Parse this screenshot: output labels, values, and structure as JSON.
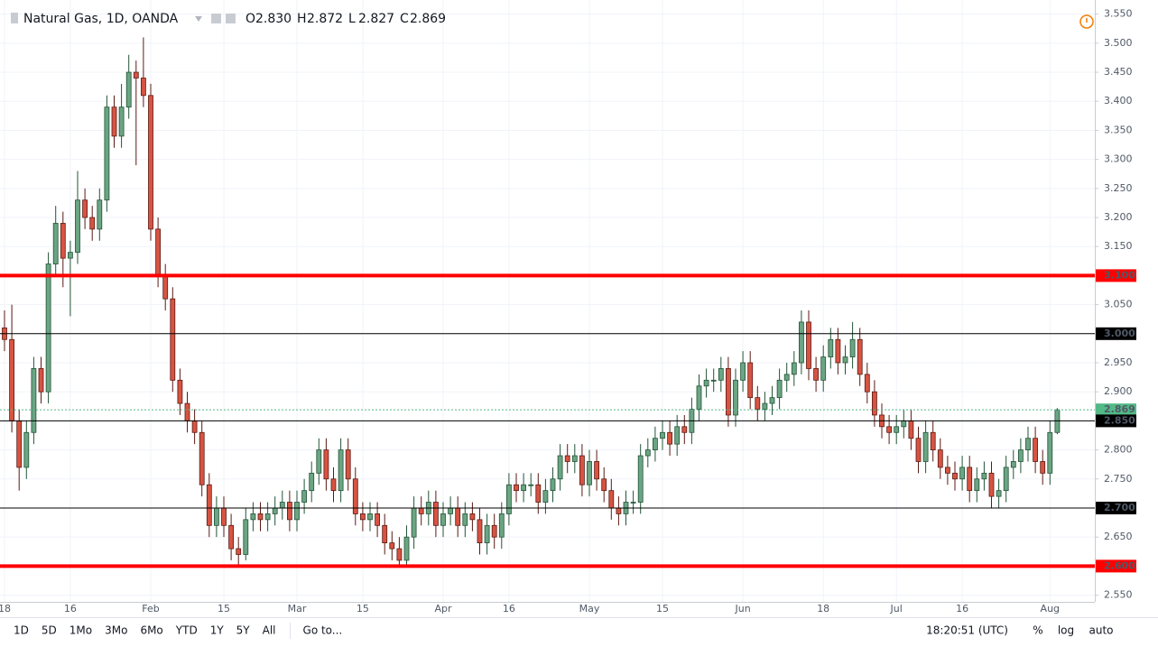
{
  "chart_data": {
    "type": "candlestick",
    "symbol": "Natural Gas, 1D, OANDA",
    "header": [
      {
        "label": "O",
        "value": "2.830"
      },
      {
        "label": "H",
        "value": "2.872"
      },
      {
        "label": "L",
        "value": "2.827"
      },
      {
        "label": "C",
        "value": "2.869"
      }
    ],
    "categories": [
      "18",
      null,
      null,
      null,
      null,
      null,
      null,
      null,
      null,
      "16",
      null,
      null,
      null,
      null,
      null,
      null,
      null,
      null,
      null,
      null,
      "Feb",
      null,
      null,
      null,
      null,
      null,
      null,
      null,
      null,
      null,
      "15",
      null,
      null,
      null,
      null,
      null,
      null,
      null,
      null,
      null,
      "Mar",
      null,
      null,
      null,
      null,
      null,
      null,
      null,
      null,
      "15",
      null,
      null,
      null,
      null,
      null,
      null,
      null,
      null,
      null,
      null,
      "Apr",
      null,
      null,
      null,
      null,
      null,
      null,
      null,
      null,
      "16",
      null,
      null,
      null,
      null,
      null,
      null,
      null,
      null,
      null,
      null,
      "May",
      null,
      null,
      null,
      null,
      null,
      null,
      null,
      null,
      null,
      "15",
      null,
      null,
      null,
      null,
      null,
      null,
      null,
      null,
      null,
      null,
      "Jun",
      null,
      null,
      null,
      null,
      null,
      null,
      null,
      null,
      null,
      null,
      "18",
      null,
      null,
      null,
      null,
      null,
      null,
      null,
      null,
      null,
      "Jul",
      null,
      null,
      null,
      null,
      null,
      null,
      null,
      null,
      "16",
      null,
      null,
      null,
      null,
      null,
      null,
      null,
      null,
      null,
      null,
      null,
      "Aug",
      null
    ],
    "open": [
      3.01,
      2.99,
      2.85,
      2.77,
      2.83,
      2.94,
      2.9,
      3.12,
      3.19,
      3.13,
      3.14,
      3.23,
      3.2,
      3.18,
      3.23,
      3.39,
      3.34,
      3.39,
      3.45,
      3.44,
      3.41,
      3.18,
      3.1,
      3.06,
      2.92,
      2.88,
      2.85,
      2.83,
      2.74,
      2.67,
      2.7,
      2.67,
      2.63,
      2.62,
      2.68,
      2.69,
      2.68,
      2.69,
      2.7,
      2.71,
      2.68,
      2.71,
      2.73,
      2.76,
      2.8,
      2.75,
      2.73,
      2.8,
      2.75,
      2.69,
      2.68,
      2.69,
      2.67,
      2.64,
      2.63,
      2.61,
      2.65,
      2.7,
      2.69,
      2.71,
      2.67,
      2.69,
      2.7,
      2.67,
      2.69,
      2.68,
      2.64,
      2.67,
      2.65,
      2.69,
      2.74,
      2.73,
      2.74,
      2.74,
      2.71,
      2.73,
      2.75,
      2.79,
      2.78,
      2.79,
      2.74,
      2.78,
      2.75,
      2.73,
      2.7,
      2.69,
      2.71,
      2.71,
      2.79,
      2.8,
      2.82,
      2.83,
      2.81,
      2.84,
      2.83,
      2.87,
      2.91,
      2.92,
      2.92,
      2.94,
      2.86,
      2.92,
      2.95,
      2.89,
      2.87,
      2.88,
      2.89,
      2.92,
      2.93,
      2.95,
      3.02,
      2.94,
      2.92,
      2.96,
      2.99,
      2.95,
      2.96,
      2.99,
      2.93,
      2.9,
      2.86,
      2.84,
      2.83,
      2.84,
      2.85,
      2.82,
      2.78,
      2.83,
      2.8,
      2.77,
      2.76,
      2.75,
      2.77,
      2.73,
      2.75,
      2.76,
      2.72,
      2.73,
      2.77,
      2.78,
      2.8,
      2.82,
      2.78,
      2.76,
      2.83
    ],
    "high": [
      3.04,
      3.05,
      2.87,
      2.85,
      2.96,
      2.96,
      3.14,
      3.22,
      3.21,
      3.16,
      3.28,
      3.25,
      3.22,
      3.25,
      3.41,
      3.41,
      3.43,
      3.48,
      3.47,
      3.51,
      3.43,
      3.2,
      3.12,
      3.08,
      2.94,
      2.9,
      2.87,
      2.85,
      2.76,
      2.72,
      2.72,
      2.69,
      2.65,
      2.7,
      2.71,
      2.71,
      2.71,
      2.72,
      2.73,
      2.73,
      2.73,
      2.75,
      2.78,
      2.82,
      2.82,
      2.77,
      2.82,
      2.82,
      2.77,
      2.71,
      2.71,
      2.71,
      2.69,
      2.66,
      2.65,
      2.67,
      2.72,
      2.72,
      2.73,
      2.73,
      2.71,
      2.72,
      2.72,
      2.71,
      2.71,
      2.7,
      2.69,
      2.69,
      2.71,
      2.76,
      2.76,
      2.76,
      2.76,
      2.76,
      2.75,
      2.77,
      2.81,
      2.81,
      2.81,
      2.81,
      2.8,
      2.8,
      2.77,
      2.75,
      2.72,
      2.73,
      2.73,
      2.81,
      2.82,
      2.84,
      2.85,
      2.85,
      2.86,
      2.86,
      2.89,
      2.93,
      2.94,
      2.94,
      2.96,
      2.96,
      2.94,
      2.97,
      2.97,
      2.91,
      2.9,
      2.91,
      2.94,
      2.95,
      2.97,
      3.04,
      3.04,
      2.96,
      2.98,
      3.01,
      3.01,
      2.98,
      3.02,
      3.01,
      2.95,
      2.92,
      2.88,
      2.86,
      2.86,
      2.87,
      2.87,
      2.84,
      2.85,
      2.85,
      2.82,
      2.79,
      2.78,
      2.79,
      2.79,
      2.77,
      2.78,
      2.78,
      2.75,
      2.79,
      2.8,
      2.82,
      2.84,
      2.84,
      2.8,
      2.85,
      2.872
    ],
    "low": [
      2.97,
      2.83,
      2.73,
      2.75,
      2.81,
      2.88,
      2.88,
      3.1,
      3.08,
      3.03,
      3.12,
      3.18,
      3.16,
      3.16,
      3.21,
      3.32,
      3.32,
      3.37,
      3.29,
      3.39,
      3.16,
      3.08,
      3.04,
      2.9,
      2.86,
      2.83,
      2.81,
      2.72,
      2.65,
      2.65,
      2.65,
      2.61,
      2.6,
      2.61,
      2.66,
      2.66,
      2.66,
      2.67,
      2.68,
      2.66,
      2.66,
      2.69,
      2.71,
      2.74,
      2.73,
      2.71,
      2.71,
      2.73,
      2.67,
      2.66,
      2.66,
      2.65,
      2.62,
      2.61,
      2.6,
      2.6,
      2.63,
      2.67,
      2.67,
      2.65,
      2.65,
      2.67,
      2.65,
      2.65,
      2.66,
      2.62,
      2.62,
      2.63,
      2.63,
      2.67,
      2.71,
      2.71,
      2.72,
      2.69,
      2.69,
      2.71,
      2.73,
      2.76,
      2.76,
      2.72,
      2.72,
      2.73,
      2.71,
      2.68,
      2.67,
      2.67,
      2.69,
      2.69,
      2.77,
      2.78,
      2.8,
      2.79,
      2.79,
      2.81,
      2.81,
      2.85,
      2.89,
      2.9,
      2.9,
      2.84,
      2.84,
      2.9,
      2.87,
      2.85,
      2.85,
      2.86,
      2.87,
      2.9,
      2.91,
      2.93,
      2.92,
      2.9,
      2.9,
      2.94,
      2.93,
      2.93,
      2.94,
      2.91,
      2.88,
      2.84,
      2.82,
      2.81,
      2.81,
      2.82,
      2.8,
      2.76,
      2.76,
      2.78,
      2.75,
      2.74,
      2.73,
      2.73,
      2.71,
      2.71,
      2.73,
      2.7,
      2.7,
      2.71,
      2.75,
      2.76,
      2.78,
      2.76,
      2.74,
      2.74,
      2.827
    ],
    "close": [
      2.99,
      2.85,
      2.77,
      2.83,
      2.94,
      2.9,
      3.12,
      3.19,
      3.13,
      3.14,
      3.23,
      3.2,
      3.18,
      3.23,
      3.39,
      3.34,
      3.39,
      3.45,
      3.44,
      3.41,
      3.18,
      3.1,
      3.06,
      2.92,
      2.88,
      2.85,
      2.83,
      2.74,
      2.67,
      2.7,
      2.67,
      2.63,
      2.62,
      2.68,
      2.69,
      2.68,
      2.69,
      2.7,
      2.71,
      2.68,
      2.71,
      2.73,
      2.76,
      2.8,
      2.75,
      2.73,
      2.8,
      2.75,
      2.69,
      2.68,
      2.69,
      2.67,
      2.64,
      2.63,
      2.61,
      2.65,
      2.7,
      2.69,
      2.71,
      2.67,
      2.69,
      2.7,
      2.67,
      2.69,
      2.68,
      2.64,
      2.67,
      2.65,
      2.69,
      2.74,
      2.73,
      2.74,
      2.74,
      2.71,
      2.73,
      2.75,
      2.79,
      2.78,
      2.79,
      2.74,
      2.78,
      2.75,
      2.73,
      2.7,
      2.69,
      2.71,
      2.71,
      2.79,
      2.8,
      2.82,
      2.83,
      2.81,
      2.84,
      2.83,
      2.87,
      2.91,
      2.92,
      2.92,
      2.94,
      2.86,
      2.92,
      2.95,
      2.89,
      2.87,
      2.88,
      2.89,
      2.92,
      2.93,
      2.95,
      3.02,
      2.94,
      2.92,
      2.96,
      2.99,
      2.95,
      2.96,
      2.99,
      2.93,
      2.9,
      2.86,
      2.84,
      2.83,
      2.84,
      2.85,
      2.82,
      2.78,
      2.83,
      2.8,
      2.77,
      2.76,
      2.75,
      2.77,
      2.73,
      2.75,
      2.76,
      2.72,
      2.73,
      2.77,
      2.78,
      2.8,
      2.82,
      2.78,
      2.76,
      2.83,
      2.869
    ],
    "up_color": "#6ba583",
    "up_border": "#225437",
    "down_color": "#d75442",
    "down_border": "#5b1a13",
    "ylim": [
      2.54,
      3.565
    ],
    "yticks": [
      {
        "value": 2.55,
        "label": "2.550"
      },
      {
        "value": 2.6,
        "label": "2.600"
      },
      {
        "value": 2.65,
        "label": "2.650"
      },
      {
        "value": 2.7,
        "label": "2.700"
      },
      {
        "value": 2.75,
        "label": "2.750"
      },
      {
        "value": 2.8,
        "label": "2.800"
      },
      {
        "value": 2.85,
        "label": "2.850"
      },
      {
        "value": 2.9,
        "label": "2.900"
      },
      {
        "value": 2.95,
        "label": "2.950"
      },
      {
        "value": 3.0,
        "label": "3.000"
      },
      {
        "value": 3.05,
        "label": "3.050"
      },
      {
        "value": 3.1,
        "label": "3.100"
      },
      {
        "value": 3.15,
        "label": "3.150"
      },
      {
        "value": 3.2,
        "label": "3.200"
      },
      {
        "value": 3.25,
        "label": "3.250"
      },
      {
        "value": 3.3,
        "label": "3.300"
      },
      {
        "value": 3.35,
        "label": "3.350"
      },
      {
        "value": 3.4,
        "label": "3.400"
      },
      {
        "value": 3.45,
        "label": "3.450"
      },
      {
        "value": 3.5,
        "label": "3.500"
      },
      {
        "value": 3.55,
        "label": "3.550"
      }
    ],
    "grid": true,
    "hlines": [
      {
        "value": 3.1,
        "label": "3.100",
        "color": "#ff0000",
        "width": 4,
        "style": "solid"
      },
      {
        "value": 3.0,
        "label": "3.000",
        "color": "#000000",
        "width": 1,
        "style": "solid"
      },
      {
        "value": 2.869,
        "label": "2.869",
        "color": "#53b987",
        "width": 1,
        "style": "dotted"
      },
      {
        "value": 2.85,
        "label": "2.850",
        "color": "#000000",
        "width": 1,
        "style": "solid"
      },
      {
        "value": 2.7,
        "label": "2.700",
        "color": "#000000",
        "width": 1,
        "style": "solid"
      },
      {
        "value": 2.6,
        "label": "2.600",
        "color": "#ff0000",
        "width": 4,
        "style": "solid"
      }
    ],
    "toolbar": {
      "ranges": [
        "1D",
        "5D",
        "1Mo",
        "3Mo",
        "6Mo",
        "YTD",
        "1Y",
        "5Y",
        "All"
      ],
      "goto": "Go to...",
      "time": "18:20:51 (UTC)",
      "right": [
        "%",
        "log",
        "auto"
      ]
    }
  }
}
